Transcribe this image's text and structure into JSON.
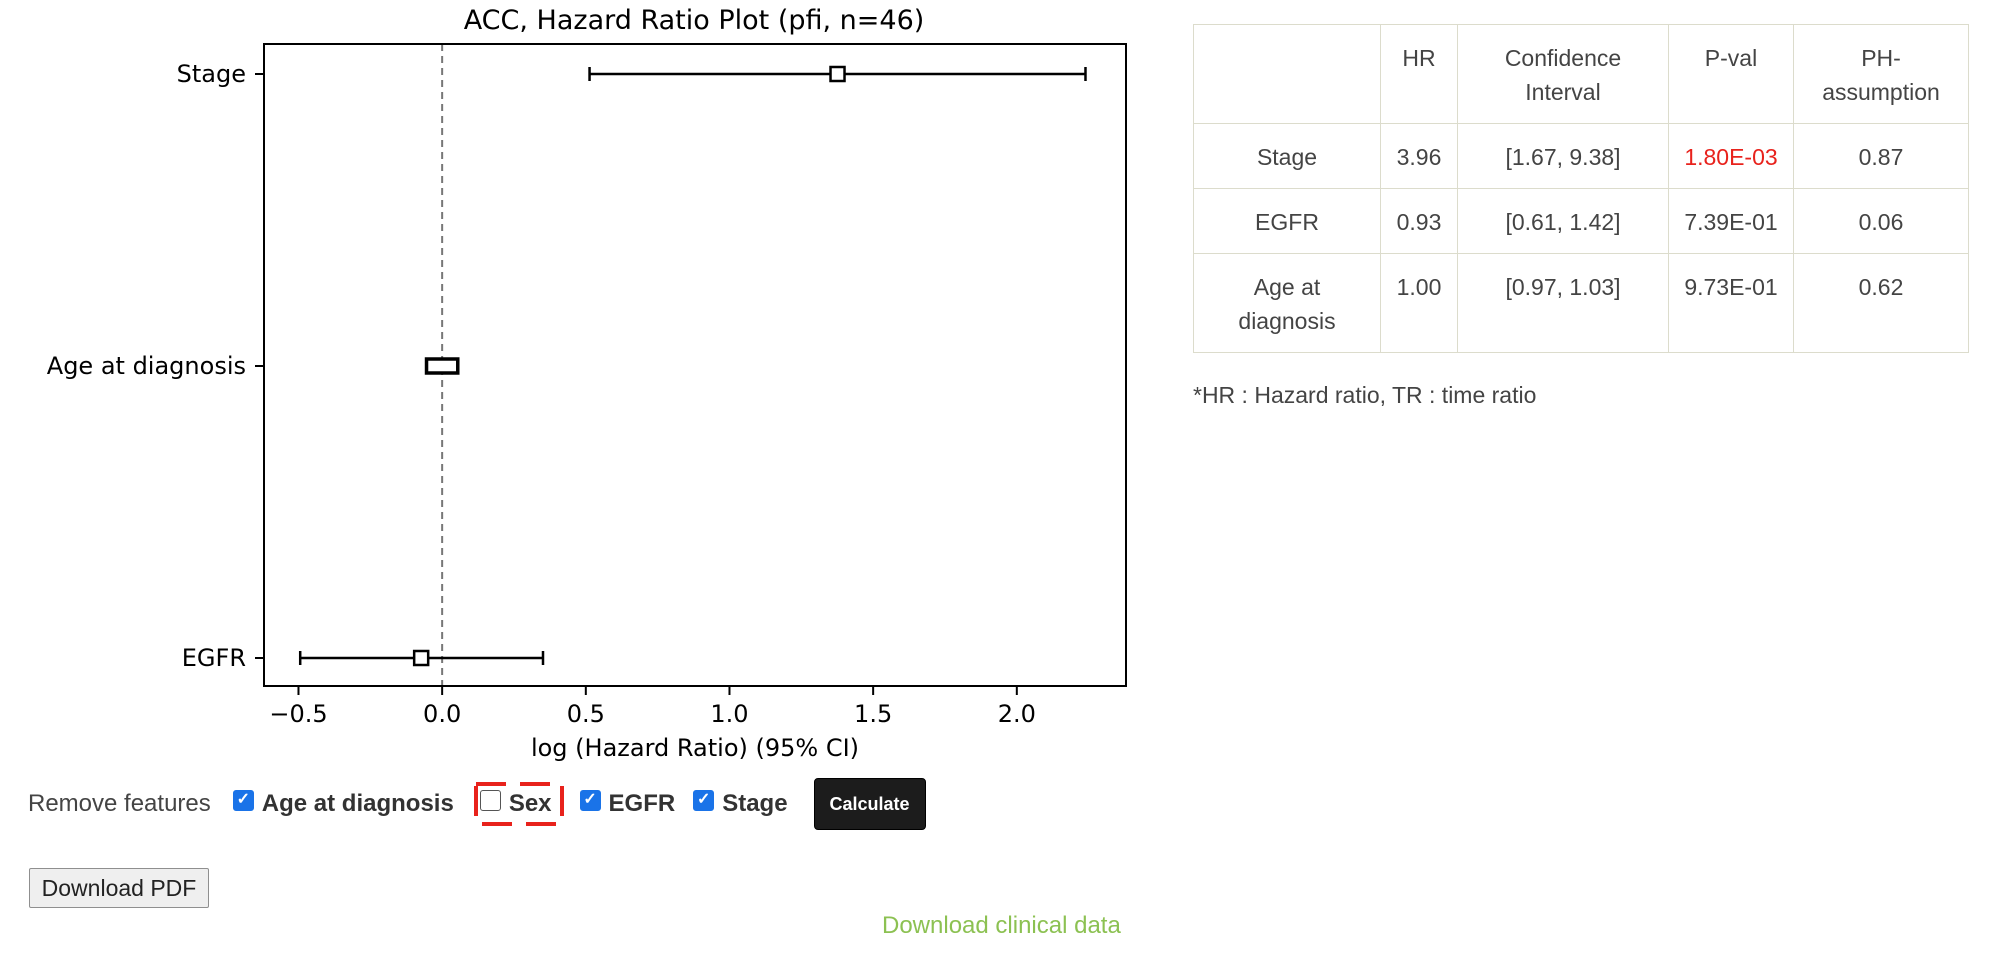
{
  "chart_data": {
    "type": "forest",
    "title": "ACC, Hazard Ratio Plot (pfi, n=46)",
    "xlabel": "log (Hazard Ratio) (95% CI)",
    "xlim": [
      -0.62,
      2.38
    ],
    "xticks": [
      {
        "value": -0.5,
        "label": "−0.5"
      },
      {
        "value": 0.0,
        "label": "0.0"
      },
      {
        "value": 0.5,
        "label": "0.5"
      },
      {
        "value": 1.0,
        "label": "1.0"
      },
      {
        "value": 1.5,
        "label": "1.5"
      },
      {
        "value": 2.0,
        "label": "2.0"
      }
    ],
    "reference_line": 0,
    "rows": [
      {
        "label": "Stage",
        "estimate": 1.376,
        "lower": 0.513,
        "upper": 2.239
      },
      {
        "label": "Age at diagnosis",
        "estimate": 0.0,
        "lower": -0.03,
        "upper": 0.03
      },
      {
        "label": "EGFR",
        "estimate": -0.073,
        "lower": -0.494,
        "upper": 0.351
      }
    ]
  },
  "table": {
    "headers": [
      "",
      "HR",
      "Confidence Interval",
      "P-val",
      "PH-assumption"
    ],
    "rows": [
      {
        "feature": "Stage",
        "hr": "3.96",
        "ci": "[1.67, 9.38]",
        "pval": "1.80E-03",
        "ph": "0.87",
        "significant": true
      },
      {
        "feature": "EGFR",
        "hr": "0.93",
        "ci": "[0.61, 1.42]",
        "pval": "7.39E-01",
        "ph": "0.06",
        "significant": false
      },
      {
        "feature": "Age at diagnosis",
        "hr": "1.00",
        "ci": "[0.97, 1.03]",
        "pval": "9.73E-01",
        "ph": "0.62",
        "significant": false
      }
    ]
  },
  "footnote": "*HR : Hazard ratio, TR : time ratio",
  "controls": {
    "remove_label": "Remove features",
    "checkboxes": [
      {
        "label": "Age at diagnosis",
        "checked": true
      },
      {
        "label": "Sex",
        "checked": false
      },
      {
        "label": "EGFR",
        "checked": true
      },
      {
        "label": "Stage",
        "checked": true
      }
    ],
    "calculate_label": "Calculate",
    "highlight_color": "#e8221c"
  },
  "download_pdf_label": "Download PDF",
  "download_clinical_label": "Download clinical data",
  "colors": {
    "checkbox_accent": "#1a73e8",
    "significant_pval": "#e8221c",
    "link": "#8cc152"
  }
}
